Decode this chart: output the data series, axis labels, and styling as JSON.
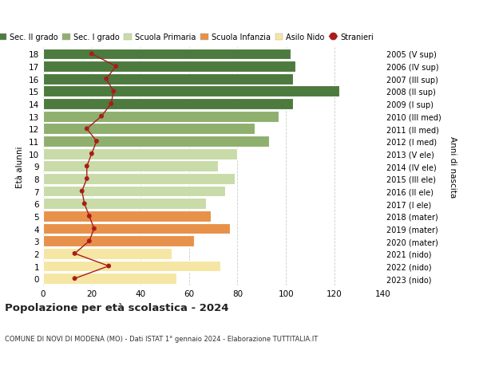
{
  "ages": [
    0,
    1,
    2,
    3,
    4,
    5,
    6,
    7,
    8,
    9,
    10,
    11,
    12,
    13,
    14,
    15,
    16,
    17,
    18
  ],
  "bar_values": [
    55,
    73,
    53,
    62,
    77,
    69,
    67,
    75,
    79,
    72,
    80,
    93,
    87,
    97,
    103,
    122,
    103,
    104,
    102
  ],
  "stranieri_values": [
    13,
    27,
    13,
    19,
    21,
    19,
    17,
    16,
    18,
    18,
    20,
    22,
    18,
    24,
    28,
    29,
    26,
    30,
    20
  ],
  "right_labels": [
    "2023 (nido)",
    "2022 (nido)",
    "2021 (nido)",
    "2020 (mater)",
    "2019 (mater)",
    "2018 (mater)",
    "2017 (I ele)",
    "2016 (II ele)",
    "2015 (III ele)",
    "2014 (IV ele)",
    "2013 (V ele)",
    "2012 (I med)",
    "2011 (II med)",
    "2010 (III med)",
    "2009 (I sup)",
    "2008 (II sup)",
    "2007 (III sup)",
    "2006 (IV sup)",
    "2005 (V sup)"
  ],
  "bar_colors": [
    "#f5e6a3",
    "#f5e6a3",
    "#f5e6a3",
    "#e8914a",
    "#e8914a",
    "#e8914a",
    "#c8dba8",
    "#c8dba8",
    "#c8dba8",
    "#c8dba8",
    "#c8dba8",
    "#8faf6e",
    "#8faf6e",
    "#8faf6e",
    "#4d7a3e",
    "#4d7a3e",
    "#4d7a3e",
    "#4d7a3e",
    "#4d7a3e"
  ],
  "legend_labels": [
    "Sec. II grado",
    "Sec. I grado",
    "Scuola Primaria",
    "Scuola Infanzia",
    "Asilo Nido",
    "Stranieri"
  ],
  "legend_colors": [
    "#4d7a3e",
    "#8faf6e",
    "#c8dba8",
    "#e8914a",
    "#f5e6a3",
    "#aa1c1c"
  ],
  "title_bold": "Popolazione per età scolastica - 2024",
  "subtitle": "COMUNE DI NOVI DI MODENA (MO) - Dati ISTAT 1° gennaio 2024 - Elaborazione TUTTITALIA.IT",
  "ylabel_left": "Età alunni",
  "ylabel_right": "Anni di nascita",
  "xlim": [
    0,
    140
  ],
  "xticks": [
    0,
    20,
    40,
    60,
    80,
    100,
    120,
    140
  ],
  "stranieri_color": "#aa1c1c",
  "bg_color": "#ffffff",
  "grid_color": "#cccccc"
}
